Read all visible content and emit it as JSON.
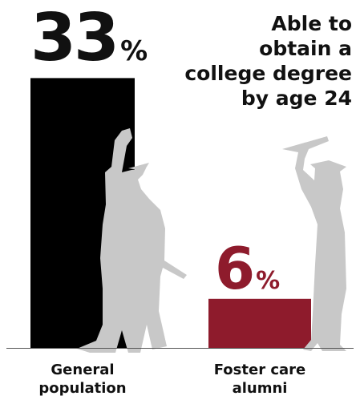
{
  "chart_data": {
    "type": "bar",
    "title": [
      "Able to",
      "obtain a",
      "college degree",
      "by age 24"
    ],
    "categories": [
      "General population",
      "Foster care alumni"
    ],
    "values": [
      33,
      6
    ],
    "unit": "%",
    "colors": [
      "#000000",
      "#8e1b2c"
    ]
  }
}
